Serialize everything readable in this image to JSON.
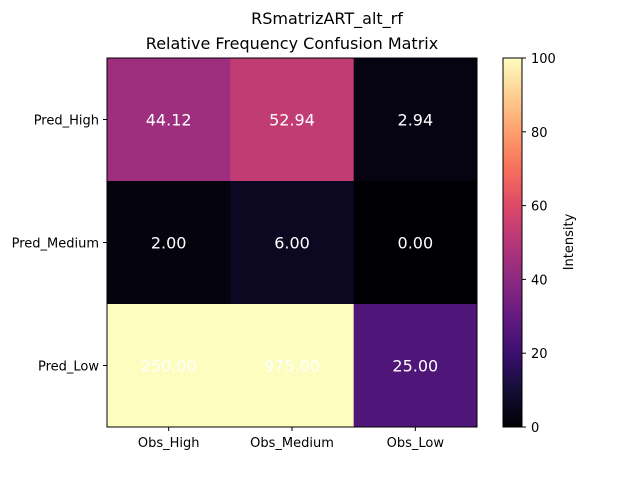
{
  "chart_data": {
    "type": "heatmap",
    "title": "RSmatrizART_alt_rf",
    "subtitle": "Relative Frequency Confusion Matrix",
    "columns": [
      "Obs_High",
      "Obs_Medium",
      "Obs_Low"
    ],
    "rows": [
      "Pred_High",
      "Pred_Medium",
      "Pred_Low"
    ],
    "values": [
      [
        44.12,
        52.94,
        2.94
      ],
      [
        2.0,
        6.0,
        0.0
      ],
      [
        250.0,
        975.0,
        25.0
      ]
    ],
    "cell_labels": [
      [
        "44.12",
        "52.94",
        "2.94"
      ],
      [
        "2.00",
        "6.00",
        "0.00"
      ],
      [
        "250.00",
        "975.00",
        "25.00"
      ]
    ],
    "colormap": "magma",
    "color_range": [
      0,
      100
    ],
    "colorbar": {
      "label": "Intensity",
      "ticks": [
        "0",
        "20",
        "40",
        "60",
        "80",
        "100"
      ],
      "tick_values": [
        0,
        20,
        40,
        60,
        80,
        100
      ]
    }
  }
}
